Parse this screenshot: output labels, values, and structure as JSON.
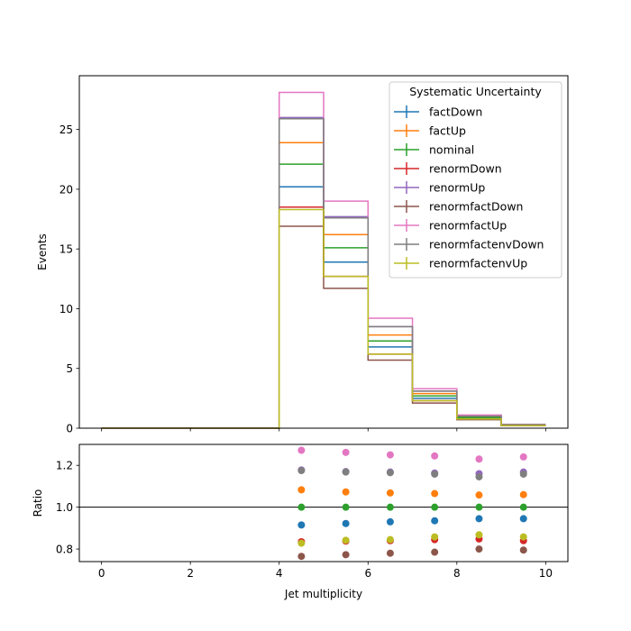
{
  "chart_data": [
    {
      "type": "step",
      "panel": "main",
      "xlabel": "",
      "ylabel": "Events",
      "xlim": [
        -0.5,
        10.5
      ],
      "ylim": [
        0,
        29.5
      ],
      "yticks": [
        0,
        5,
        10,
        15,
        20,
        25
      ],
      "xticks": [
        0,
        2,
        4,
        6,
        8,
        10
      ],
      "bin_edges": [
        0,
        1,
        2,
        3,
        4,
        5,
        6,
        7,
        8,
        9,
        10
      ],
      "legend": {
        "title": "Systematic Uncertainty",
        "placement": "upper right"
      },
      "series": [
        {
          "name": "factDown",
          "color": "#1f77b4",
          "values": [
            0,
            0,
            0,
            0,
            20.2,
            13.9,
            6.8,
            2.5,
            0.85,
            0.25
          ]
        },
        {
          "name": "factUp",
          "color": "#ff7f0e",
          "values": [
            0,
            0,
            0,
            0,
            23.9,
            16.2,
            7.8,
            2.9,
            0.94,
            0.27
          ]
        },
        {
          "name": "nominal",
          "color": "#2ca02c",
          "values": [
            0,
            0,
            0,
            0,
            22.1,
            15.1,
            7.3,
            2.7,
            0.89,
            0.26
          ]
        },
        {
          "name": "renormDown",
          "color": "#d62728",
          "values": [
            0,
            0,
            0,
            0,
            18.5,
            12.7,
            6.2,
            2.3,
            0.75,
            0.22
          ]
        },
        {
          "name": "renormUp",
          "color": "#9467bd",
          "values": [
            0,
            0,
            0,
            0,
            26.0,
            17.7,
            8.5,
            3.1,
            1.03,
            0.3
          ]
        },
        {
          "name": "renormfactDown",
          "color": "#8c564b",
          "values": [
            0,
            0,
            0,
            0,
            16.9,
            11.7,
            5.7,
            2.1,
            0.71,
            0.21
          ]
        },
        {
          "name": "renormfactUp",
          "color": "#e377c2",
          "values": [
            0,
            0,
            0,
            0,
            28.1,
            19.0,
            9.2,
            3.3,
            1.1,
            0.32
          ]
        },
        {
          "name": "renormfactenvDown",
          "color": "#7f7f7f",
          "values": [
            0,
            0,
            0,
            0,
            25.9,
            17.6,
            8.5,
            3.1,
            1.01,
            0.3
          ]
        },
        {
          "name": "renormfactenvUp",
          "color": "#bcbd22",
          "values": [
            0,
            0,
            0,
            0,
            18.3,
            12.7,
            6.2,
            2.3,
            0.77,
            0.22
          ]
        }
      ]
    },
    {
      "type": "scatter",
      "panel": "ratio",
      "xlabel": "Jet multiplicity",
      "ylabel": "Ratio",
      "xlim": [
        -0.5,
        10.5
      ],
      "ylim": [
        0.74,
        1.3
      ],
      "yticks": [
        0.8,
        1.0,
        1.2
      ],
      "ytick_labels": [
        "0.8",
        "1.0",
        "1.2"
      ],
      "xticks": [
        0,
        2,
        4,
        6,
        8,
        10
      ],
      "reference_line": 1.0,
      "x": [
        4.5,
        5.5,
        6.5,
        7.5,
        8.5,
        9.5
      ],
      "series": [
        {
          "name": "factDown",
          "color": "#1f77b4",
          "values": [
            0.915,
            0.922,
            0.93,
            0.935,
            0.945,
            0.945
          ]
        },
        {
          "name": "factUp",
          "color": "#ff7f0e",
          "values": [
            1.083,
            1.073,
            1.068,
            1.065,
            1.058,
            1.06
          ]
        },
        {
          "name": "nominal",
          "color": "#2ca02c",
          "values": [
            1.0,
            1.0,
            1.0,
            1.0,
            1.0,
            1.0
          ]
        },
        {
          "name": "renormDown",
          "color": "#d62728",
          "values": [
            0.835,
            0.838,
            0.84,
            0.845,
            0.848,
            0.84
          ]
        },
        {
          "name": "renormUp",
          "color": "#9467bd",
          "values": [
            1.178,
            1.17,
            1.168,
            1.163,
            1.16,
            1.168
          ]
        },
        {
          "name": "renormfactDown",
          "color": "#8c564b",
          "values": [
            0.765,
            0.773,
            0.78,
            0.785,
            0.8,
            0.795
          ]
        },
        {
          "name": "renormfactUp",
          "color": "#e377c2",
          "values": [
            1.272,
            1.262,
            1.25,
            1.245,
            1.23,
            1.24
          ]
        },
        {
          "name": "renormfactenvDown",
          "color": "#7f7f7f",
          "values": [
            1.175,
            1.168,
            1.165,
            1.158,
            1.145,
            1.158
          ]
        },
        {
          "name": "renormfactenvUp",
          "color": "#bcbd22",
          "values": [
            0.828,
            0.842,
            0.845,
            0.858,
            0.868,
            0.858
          ]
        }
      ]
    }
  ]
}
